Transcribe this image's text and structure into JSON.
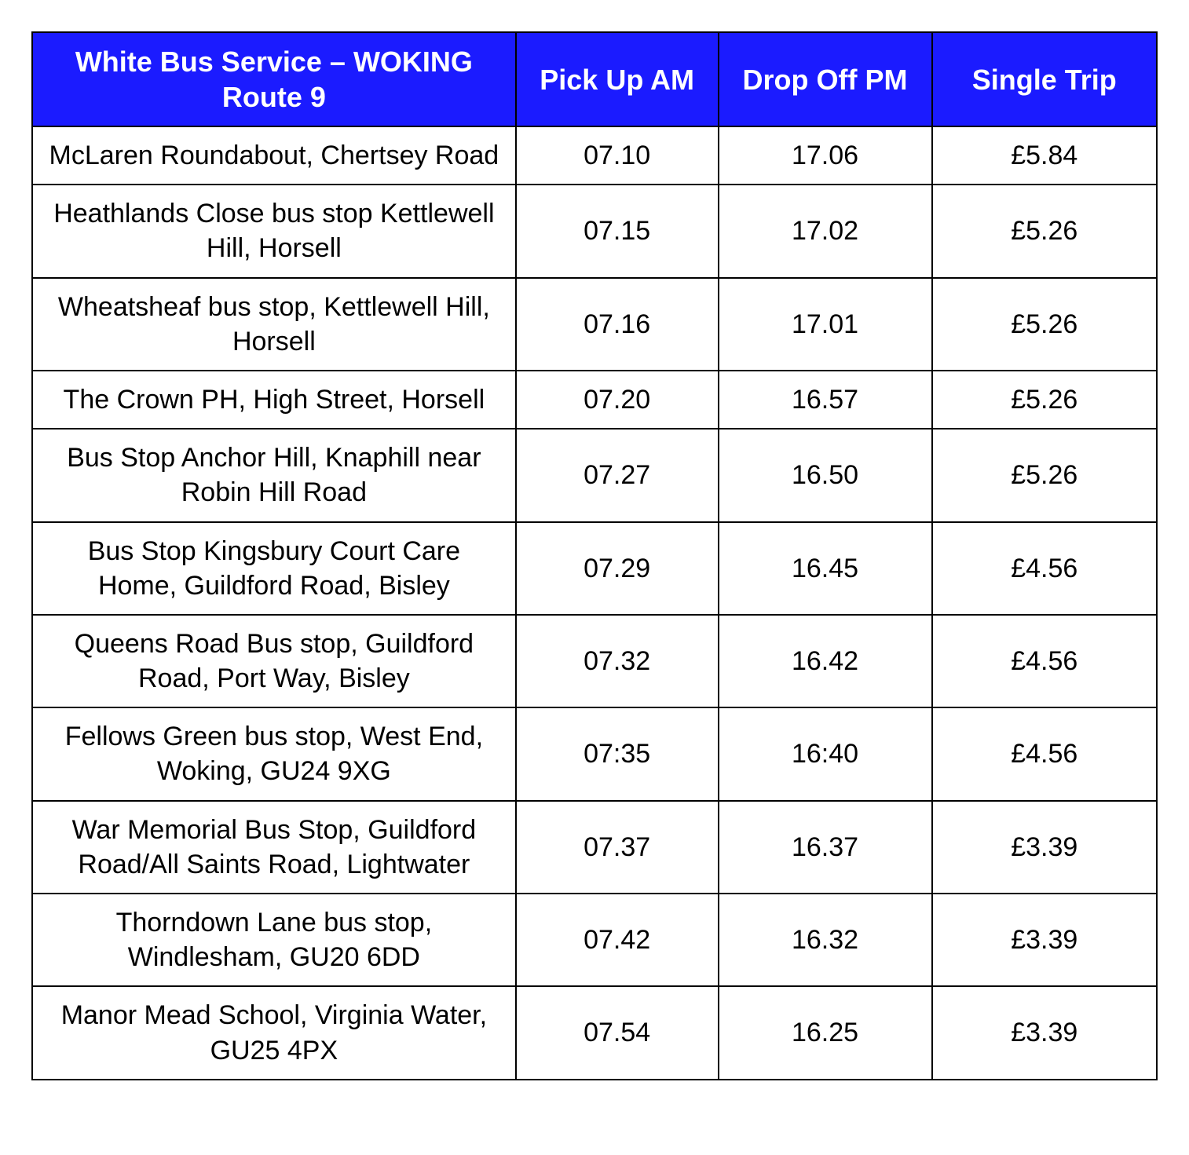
{
  "table": {
    "type": "table",
    "header_bg_color": "#1b1bff",
    "header_text_color": "#ffffff",
    "border_color": "#000000",
    "cell_text_color": "#000000",
    "header_fontsize": 36,
    "cell_fontsize": 34,
    "font_family": "Segoe UI",
    "columns": [
      {
        "label": "White Bus Service – WOKING Route 9",
        "width_pct": 43
      },
      {
        "label": "Pick Up AM",
        "width_pct": 18
      },
      {
        "label": "Drop Off PM",
        "width_pct": 19
      },
      {
        "label": "Single Trip",
        "width_pct": 20
      }
    ],
    "rows": [
      {
        "stop": "McLaren Roundabout, Chertsey Road",
        "pickup": "07.10",
        "dropoff": "17.06",
        "single": "£5.84"
      },
      {
        "stop": "Heathlands Close bus stop Kettlewell Hill, Horsell",
        "pickup": "07.15",
        "dropoff": "17.02",
        "single": "£5.26"
      },
      {
        "stop": "Wheatsheaf bus stop, Kettlewell Hill, Horsell",
        "pickup": "07.16",
        "dropoff": "17.01",
        "single": "£5.26"
      },
      {
        "stop": "The Crown PH, High Street, Horsell",
        "pickup": "07.20",
        "dropoff": "16.57",
        "single": "£5.26"
      },
      {
        "stop": "Bus Stop Anchor Hill, Knaphill near Robin Hill Road",
        "pickup": "07.27",
        "dropoff": "16.50",
        "single": "£5.26"
      },
      {
        "stop": "Bus Stop Kingsbury Court Care Home, Guildford Road, Bisley",
        "pickup": "07.29",
        "dropoff": "16.45",
        "single": "£4.56"
      },
      {
        "stop": "Queens Road Bus stop, Guildford Road, Port Way, Bisley",
        "pickup": "07.32",
        "dropoff": "16.42",
        "single": "£4.56"
      },
      {
        "stop": "Fellows Green bus stop, West End, Woking, GU24 9XG",
        "pickup": "07:35",
        "dropoff": "16:40",
        "single": "£4.56"
      },
      {
        "stop": "War Memorial Bus Stop, Guildford Road/All Saints Road, Lightwater",
        "pickup": "07.37",
        "dropoff": "16.37",
        "single": "£3.39"
      },
      {
        "stop": "Thorndown Lane bus stop, Windlesham, GU20 6DD",
        "pickup": "07.42",
        "dropoff": "16.32",
        "single": "£3.39"
      },
      {
        "stop": "Manor Mead School, Virginia Water, GU25 4PX",
        "pickup": "07.54",
        "dropoff": "16.25",
        "single": "£3.39"
      }
    ]
  }
}
